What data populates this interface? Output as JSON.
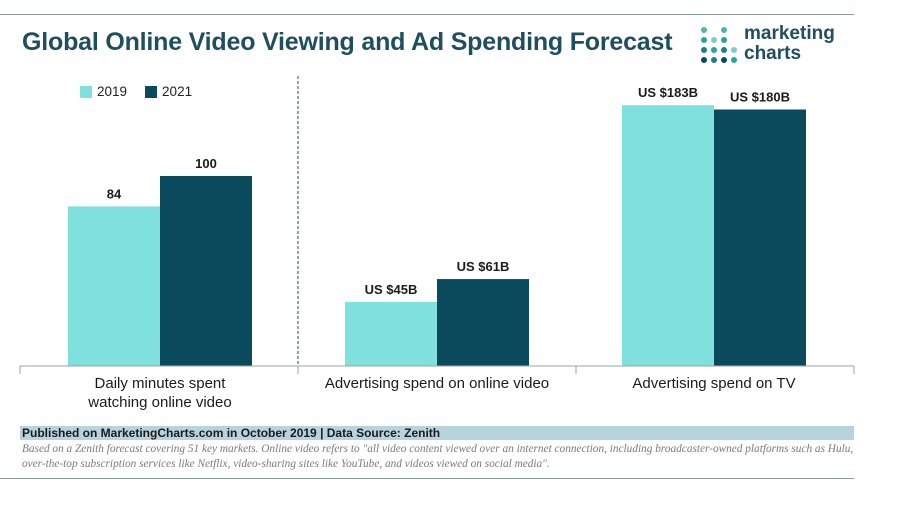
{
  "title": "Global Online Video Viewing and Ad Spending Forecast",
  "logo": {
    "line1": "marketing",
    "line2": "charts"
  },
  "colors": {
    "series_2019": "#7fe0de",
    "series_2021": "#0b4a5c",
    "title": "#1f4e5f"
  },
  "chart_data": {
    "type": "bar",
    "title": "Global Online Video Viewing and Ad Spending Forecast",
    "legend": {
      "placement": "top-left",
      "entries": [
        "2019",
        "2021"
      ]
    },
    "panels": [
      {
        "category": "Daily minutes spent watching online video",
        "category_lines": [
          "Daily minutes spent",
          "watching online video"
        ],
        "ylim": [
          0,
          150
        ],
        "values": {
          "2019": 84,
          "2021": 100
        },
        "labels": {
          "2019": "84",
          "2021": "100"
        }
      },
      {
        "category": "Advertising spend on online video",
        "category_lines": [
          "Advertising spend on online video"
        ],
        "ylim": [
          0,
          200
        ],
        "values": {
          "2019": 45,
          "2021": 61
        },
        "labels": {
          "2019": "US $45B",
          "2021": "US $61B"
        }
      },
      {
        "category": "Advertising spend on TV",
        "category_lines": [
          "Advertising spend on TV"
        ],
        "ylim": [
          0,
          200
        ],
        "values": {
          "2019": 183,
          "2021": 180
        },
        "labels": {
          "2019": "US $183B",
          "2021": "US $180B"
        }
      }
    ],
    "series": [
      {
        "name": "2019",
        "values": [
          84,
          45,
          183
        ]
      },
      {
        "name": "2021",
        "values": [
          100,
          61,
          180
        ]
      }
    ]
  },
  "source": "Published on MarketingCharts.com in October 2019 | Data Source: Zenith",
  "note": "Based on a Zenith forecast covering 51 key markets. Online video refers to \"all video content viewed over an internet connection, including broadcaster-owned platforms such as Hulu, over-the-top subscription services like Netflix, video-sharing sites like YouTube, and videos viewed on social media\"."
}
